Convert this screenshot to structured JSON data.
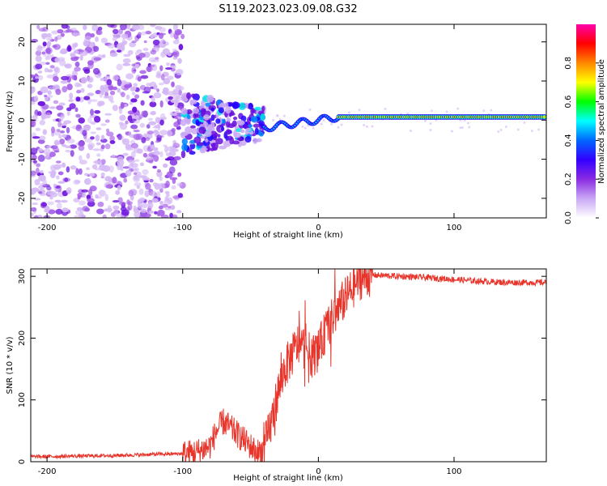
{
  "figure": {
    "title": "S119.2023.023.09.08.G32"
  },
  "chart_data": [
    {
      "type": "heatmap",
      "xlabel": "Height of straight line (km)",
      "ylabel": "Frequency (Hz)",
      "xlim": [
        -212,
        168
      ],
      "ylim": [
        -25,
        24.5
      ],
      "xticks": [
        -200,
        -100,
        0,
        100
      ],
      "yticks": [
        -20,
        -10,
        0,
        10,
        20
      ],
      "grid": false,
      "description_of_data": {
        "noise_region_x": [
          -212,
          -100
        ],
        "transition_region_x": [
          -100,
          -40
        ],
        "signal_line_freq_hz": 0.8,
        "signal_line_start_x": -40
      },
      "colorbar": {
        "label": "Normalized spectral amplitude",
        "range": [
          0.0,
          1.0
        ],
        "ticks": [
          0.0,
          0.2,
          0.4,
          0.6,
          0.8
        ],
        "colors": [
          "#ffffff",
          "#c9a8f5",
          "#8a2be2",
          "#3300ff",
          "#0066ff",
          "#00ffff",
          "#00ff00",
          "#ffff00",
          "#ff8800",
          "#ff0000",
          "#ff00aa"
        ]
      }
    },
    {
      "type": "line",
      "xlabel": "Height of straight line (km)",
      "ylabel": "SNR (10 * v/v)",
      "xlim": [
        -212,
        168
      ],
      "ylim": [
        0,
        312
      ],
      "xticks": [
        -200,
        -100,
        0,
        100
      ],
      "yticks": [
        0,
        100,
        200,
        300
      ],
      "grid": false,
      "line_color": "#e8352b",
      "x": [
        -212,
        -180,
        -150,
        -120,
        -100,
        -90,
        -80,
        -75,
        -70,
        -65,
        -60,
        -55,
        -50,
        -45,
        -40,
        -35,
        -30,
        -25,
        -20,
        -15,
        -10,
        -5,
        0,
        5,
        10,
        15,
        20,
        25,
        30,
        35,
        40,
        60,
        80,
        100,
        120,
        140,
        168
      ],
      "y": [
        8,
        9,
        10,
        12,
        13,
        15,
        25,
        50,
        65,
        55,
        45,
        35,
        25,
        15,
        20,
        60,
        110,
        150,
        170,
        190,
        185,
        170,
        180,
        210,
        230,
        250,
        265,
        280,
        295,
        300,
        302,
        300,
        298,
        295,
        292,
        290,
        290
      ]
    }
  ]
}
